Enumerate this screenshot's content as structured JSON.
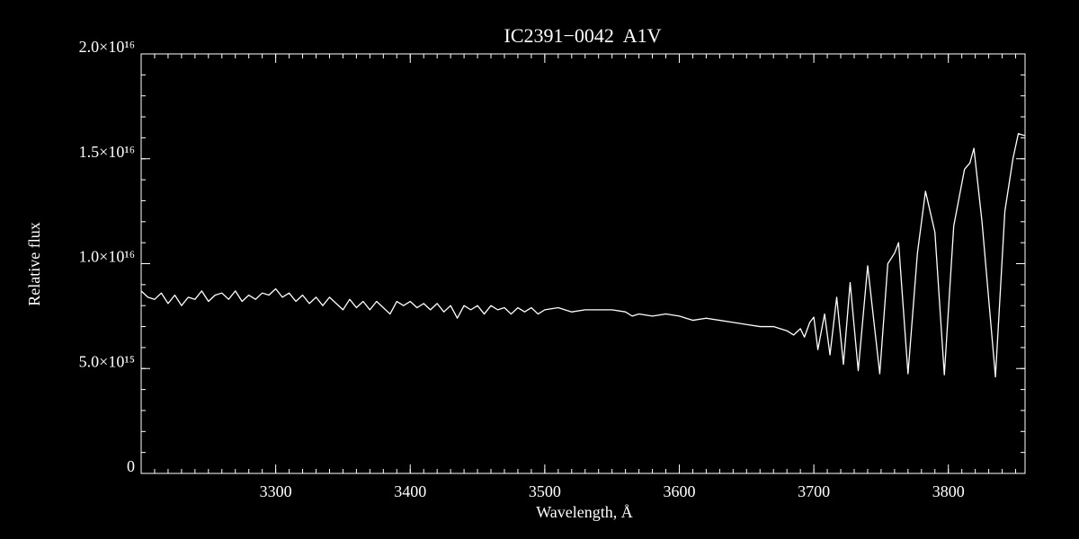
{
  "chart_data": {
    "type": "line",
    "title": "IC2391−0042  A1V",
    "xlabel": "Wavelength, Å",
    "ylabel": "Relative flux",
    "color": "#ffffff",
    "x": [
      3200,
      3205,
      3210,
      3215,
      3220,
      3225,
      3230,
      3235,
      3240,
      3245,
      3250,
      3255,
      3260,
      3265,
      3270,
      3275,
      3280,
      3285,
      3290,
      3295,
      3300,
      3305,
      3310,
      3315,
      3320,
      3325,
      3330,
      3335,
      3340,
      3345,
      3350,
      3355,
      3360,
      3365,
      3370,
      3375,
      3380,
      3385,
      3390,
      3395,
      3400,
      3405,
      3410,
      3415,
      3420,
      3425,
      3430,
      3435,
      3440,
      3445,
      3450,
      3455,
      3460,
      3465,
      3470,
      3475,
      3480,
      3485,
      3490,
      3495,
      3500,
      3510,
      3520,
      3530,
      3540,
      3550,
      3560,
      3565,
      3570,
      3580,
      3590,
      3600,
      3610,
      3620,
      3630,
      3640,
      3650,
      3660,
      3670,
      3680,
      3685,
      3690,
      3693,
      3697,
      3700,
      3703,
      3708,
      3712,
      3717,
      3722,
      3727,
      3733,
      3740,
      3749,
      3755,
      3760,
      3763,
      3770,
      3777,
      3783,
      3790,
      3797,
      3804,
      3812,
      3816,
      3819,
      3825,
      3835,
      3842,
      3848,
      3852,
      3857
    ],
    "values": [
      8700000000000000.0,
      8400000000000000.0,
      8300000000000000.0,
      8600000000000000.0,
      8100000000000000.0,
      8500000000000000.0,
      8000000000000000.0,
      8400000000000000.0,
      8300000000000000.0,
      8700000000000000.0,
      8200000000000000.0,
      8500000000000000.0,
      8600000000000000.0,
      8300000000000000.0,
      8700000000000000.0,
      8200000000000000.0,
      8500000000000000.0,
      8300000000000000.0,
      8600000000000000.0,
      8500000000000000.0,
      8800000000000000.0,
      8400000000000000.0,
      8600000000000000.0,
      8200000000000000.0,
      8500000000000000.0,
      8100000000000000.0,
      8400000000000000.0,
      8000000000000000.0,
      8400000000000000.0,
      8100000000000000.0,
      7800000000000000.0,
      8300000000000000.0,
      7900000000000000.0,
      8200000000000000.0,
      7800000000000000.0,
      8200000000000000.0,
      7900000000000000.0,
      7600000000000000.0,
      8200000000000000.0,
      8000000000000000.0,
      8200000000000000.0,
      7900000000000000.0,
      8100000000000000.0,
      7800000000000000.0,
      8100000000000000.0,
      7700000000000000.0,
      8000000000000000.0,
      7400000000000000.0,
      8000000000000000.0,
      7800000000000000.0,
      8000000000000000.0,
      7600000000000000.0,
      8000000000000000.0,
      7800000000000000.0,
      7900000000000000.0,
      7600000000000000.0,
      7900000000000000.0,
      7700000000000000.0,
      7900000000000000.0,
      7600000000000000.0,
      7800000000000000.0,
      7900000000000000.0,
      7700000000000000.0,
      7800000000000000.0,
      7800000000000000.0,
      7800000000000000.0,
      7700000000000000.0,
      7500000000000000.0,
      7600000000000000.0,
      7500000000000000.0,
      7600000000000000.0,
      7500000000000000.0,
      7300000000000000.0,
      7400000000000000.0,
      7300000000000000.0,
      7200000000000000.0,
      7100000000000000.0,
      7000000000000000.0,
      7000000000000000.0,
      6800000000000000.0,
      6600000000000000.0,
      6900000000000000.0,
      6500000000000000.0,
      7200000000000000.0,
      7450000000000000.0,
      5900000000000000.0,
      7600000000000000.0,
      5650000000000000.0,
      8400000000000000.0,
      5200000000000000.0,
      9100000000000000.0,
      4900000000000000.0,
      9900000000000000.0,
      4750000000000000.0,
      1e+16,
      1.05e+16,
      1.1e+16,
      4750000000000000.0,
      1.05e+16,
      1.345e+16,
      1.15e+16,
      4700000000000000.0,
      1.18e+16,
      1.45e+16,
      1.48e+16,
      1.55e+16,
      1.2e+16,
      4600000000000000.0,
      1.25e+16,
      1.5e+16,
      1.62e+16,
      1.61e+16
    ],
    "xlim": [
      3200,
      3857
    ],
    "xticks": [
      3300,
      3400,
      3500,
      3600,
      3700,
      3800
    ],
    "ylim": [
      0,
      2e+16
    ],
    "yticks": [
      0,
      {
        "value": 5000000000000000.0,
        "label": "5.0×10¹⁵"
      },
      {
        "value": 1e+16,
        "label": "1.0×10¹⁶"
      },
      {
        "value": 1.5e+16,
        "label": "1.5×10¹⁶"
      },
      {
        "value": 2e+16,
        "label": "2.0×10¹⁶"
      }
    ]
  }
}
